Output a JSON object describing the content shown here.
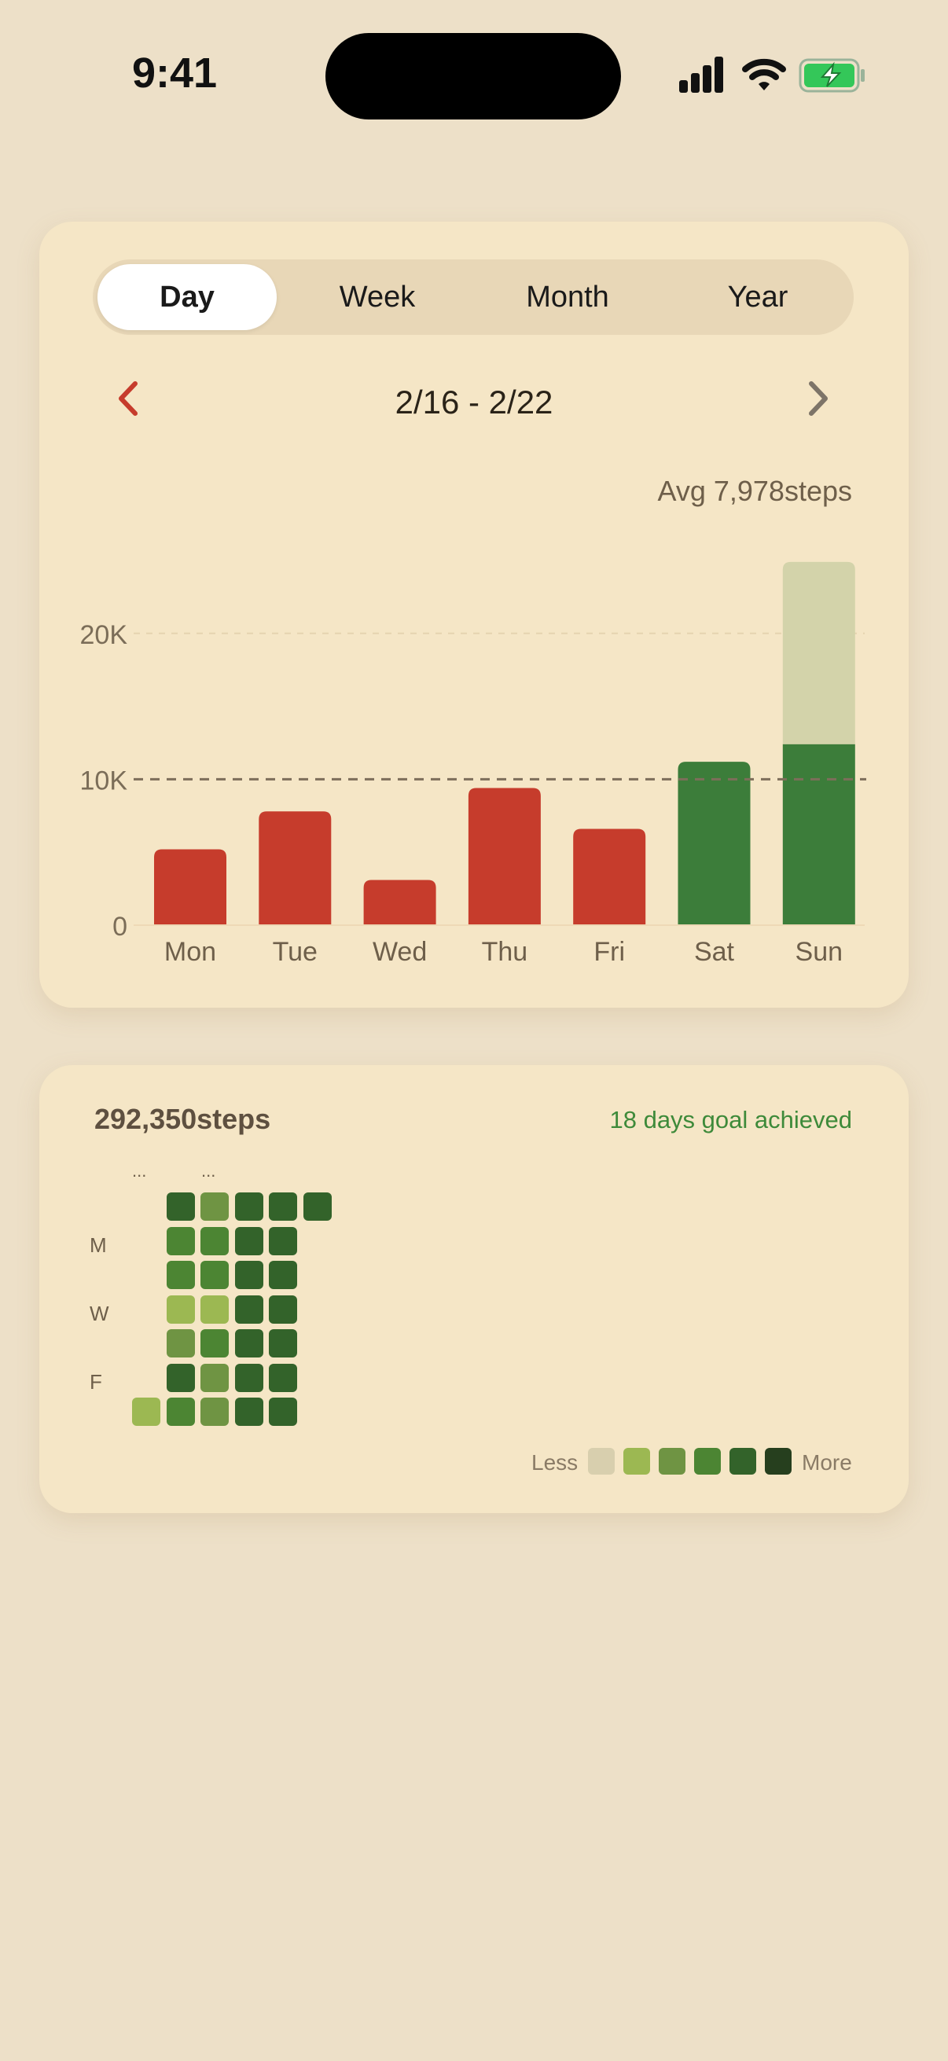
{
  "status": {
    "time": "9:41"
  },
  "segments": [
    "Day",
    "Week",
    "Month",
    "Year"
  ],
  "selected_segment": "Day",
  "date_range": "2/16 - 2/22",
  "average": {
    "label": "Avg",
    "value": "7,978steps"
  },
  "colors": {
    "below_goal": "#c63c2c",
    "goal_met": "#3c7d3a",
    "overflow": "#d3d3aa",
    "accent_prev": "#c63c2c",
    "accent_next": "#7d7468"
  },
  "chart_data": {
    "type": "bar",
    "categories": [
      "Mon",
      "Tue",
      "Wed",
      "Thu",
      "Fri",
      "Sat",
      "Sun"
    ],
    "values": [
      5200,
      7800,
      3100,
      9400,
      6600,
      11200,
      24900
    ],
    "goal": 10000,
    "goal_met_cap": 12400,
    "y_ticks": [
      "0",
      "10K",
      "20K"
    ],
    "ylim": [
      0,
      25000
    ],
    "grid": true
  },
  "summary": {
    "total": "292,350steps",
    "goal_text": "18 days goal achieved"
  },
  "heatmap": {
    "month_markers": [
      "...",
      "..."
    ],
    "day_labels": [
      "M",
      "W",
      "F"
    ],
    "columns": [
      [
        null,
        null,
        null,
        null,
        null,
        null,
        1
      ],
      [
        4,
        3,
        3,
        1,
        2,
        4,
        3
      ],
      [
        2,
        3,
        3,
        1,
        3,
        2,
        2
      ],
      [
        4,
        4,
        4,
        4,
        4,
        4,
        4
      ],
      [
        4,
        4,
        4,
        4,
        4,
        4,
        4
      ],
      [
        4,
        null,
        null,
        null,
        null,
        null,
        null
      ]
    ],
    "level_colors": [
      "#d8cfae",
      "#9cb852",
      "#6f9443",
      "#4c8533",
      "#33632a",
      "#263f1e"
    ],
    "legend_less": "Less",
    "legend_more": "More"
  }
}
